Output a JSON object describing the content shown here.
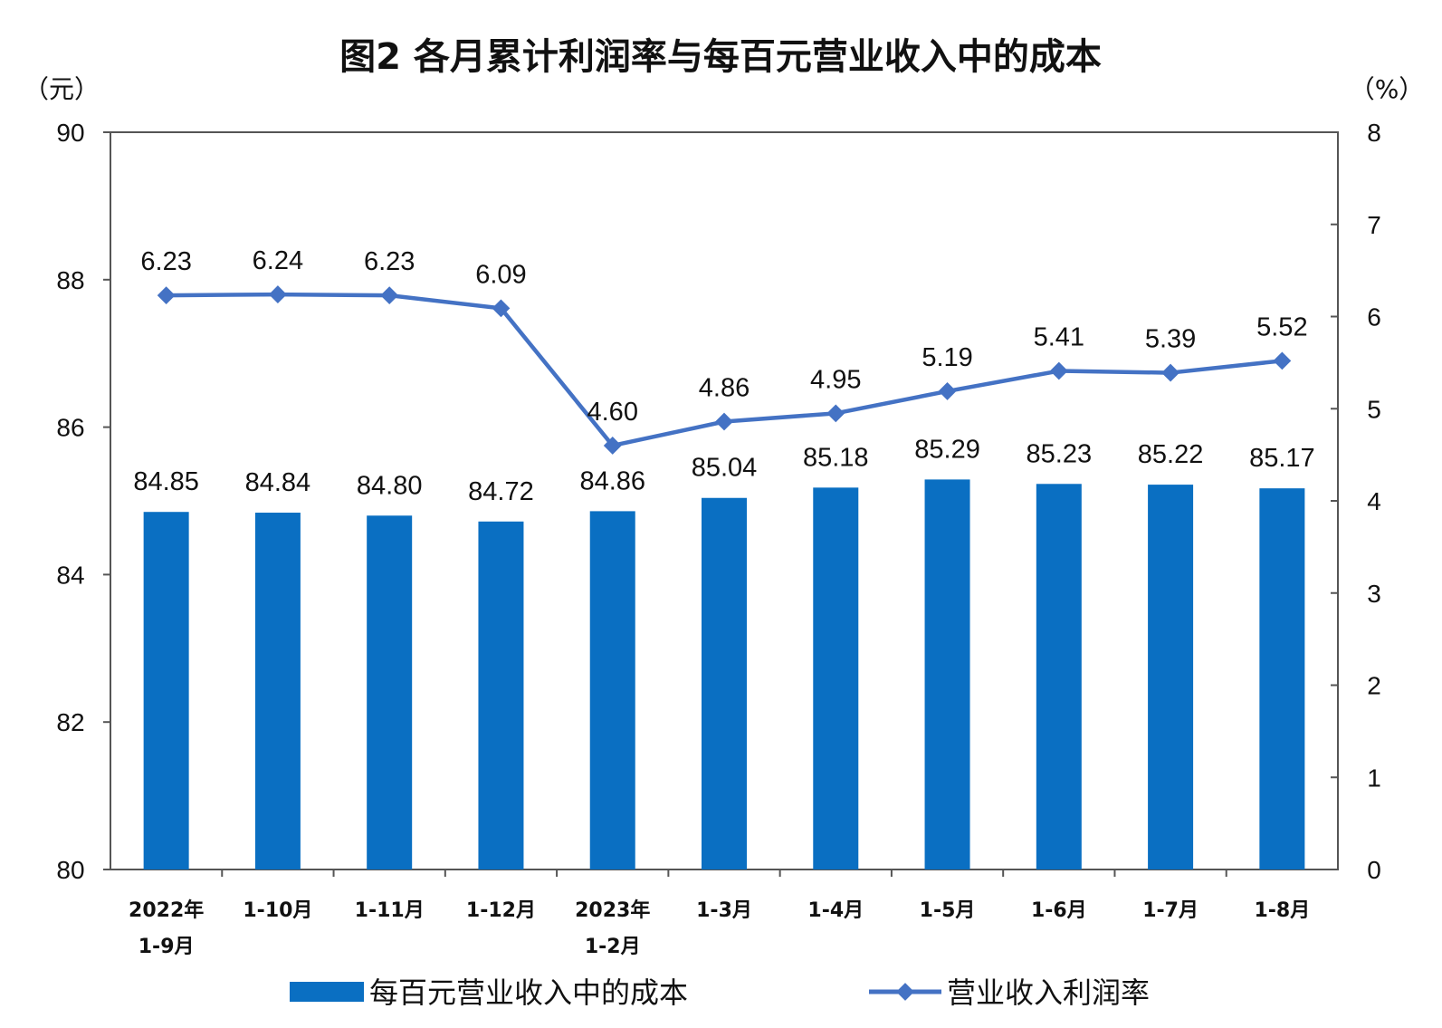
{
  "chart_data": {
    "type": "bar+line",
    "title": "图2  各月累计利润率与每百元营业收入中的成本",
    "left_unit": "（元）",
    "right_unit": "（%）",
    "categories": [
      [
        "2022年",
        "1-9月"
      ],
      [
        "1-10月"
      ],
      [
        "1-11月"
      ],
      [
        "1-12月"
      ],
      [
        "2023年",
        "1-2月"
      ],
      [
        "1-3月"
      ],
      [
        "1-4月"
      ],
      [
        "1-5月"
      ],
      [
        "1-6月"
      ],
      [
        "1-7月"
      ],
      [
        "1-8月"
      ]
    ],
    "series": [
      {
        "name": "每百元营业收入中的成本",
        "type": "bar",
        "axis": "left",
        "color": "#0a6fc2",
        "values": [
          84.85,
          84.84,
          84.8,
          84.72,
          84.86,
          85.04,
          85.18,
          85.29,
          85.23,
          85.22,
          85.17
        ],
        "labels": [
          "84.85",
          "84.84",
          "84.80",
          "84.72",
          "84.86",
          "85.04",
          "85.18",
          "85.29",
          "85.23",
          "85.22",
          "85.17"
        ]
      },
      {
        "name": "营业收入利润率",
        "type": "line",
        "axis": "right",
        "color": "#4472c4",
        "values": [
          6.23,
          6.24,
          6.23,
          6.09,
          4.6,
          4.86,
          4.95,
          5.19,
          5.41,
          5.39,
          5.52
        ],
        "labels": [
          "6.23",
          "6.24",
          "6.23",
          "6.09",
          "4.60",
          "4.86",
          "4.95",
          "5.19",
          "5.41",
          "5.39",
          "5.52"
        ]
      }
    ],
    "y_left": {
      "min": 80,
      "max": 90,
      "ticks": [
        "80",
        "82",
        "84",
        "86",
        "88",
        "90"
      ]
    },
    "y_right": {
      "min": 0,
      "max": 8,
      "ticks": [
        "0",
        "1",
        "2",
        "3",
        "4",
        "5",
        "6",
        "7",
        "8"
      ]
    },
    "grid": false,
    "legend_position": "bottom"
  }
}
